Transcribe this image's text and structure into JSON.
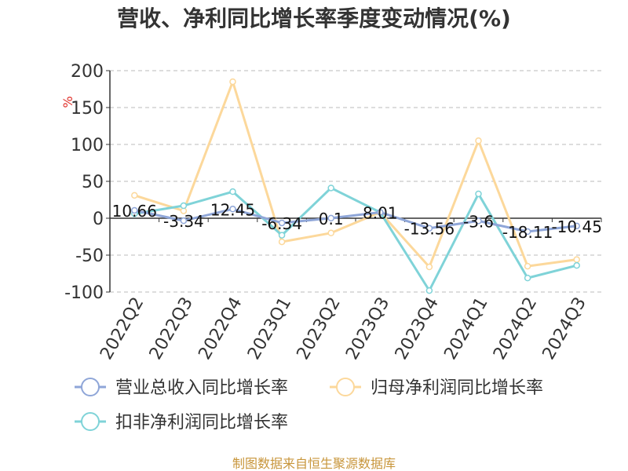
{
  "chart_data": {
    "type": "line",
    "title": "营收、净利同比增长率季度变动情况(%)",
    "ylabel": "%",
    "ylim": [
      -100,
      200
    ],
    "yticks": [
      -100,
      -50,
      0,
      50,
      100,
      150,
      200
    ],
    "grid": true,
    "legend_position": "bottom",
    "categories": [
      "2022Q2",
      "2022Q3",
      "2022Q4",
      "2023Q1",
      "2023Q2",
      "2023Q3",
      "2023Q4",
      "2024Q1",
      "2024Q2",
      "2024Q3"
    ],
    "series": [
      {
        "name": "营业总收入同比增长率",
        "color": "#8fa6d8",
        "values": [
          10.66,
          -3.34,
          12.45,
          -6.34,
          0.1,
          8.01,
          -13.56,
          -3.6,
          -18.11,
          -10.45
        ],
        "labels": [
          "10.66",
          "-3.34",
          "12.45",
          "-6.34",
          "0.1",
          "8.01",
          "-13.56",
          "-3.6",
          "-18.11",
          "-10.45"
        ]
      },
      {
        "name": "归母净利润同比增长率",
        "color": "#fcd89b",
        "values": [
          31,
          10,
          185,
          -32,
          -20,
          8,
          -66,
          105,
          -65,
          -56
        ]
      },
      {
        "name": "扣非净利润同比增长率",
        "color": "#7fd3d8",
        "values": [
          6,
          17,
          36,
          -23,
          41,
          8,
          -98,
          33,
          -81,
          -64
        ]
      }
    ],
    "source": "制图数据来自恒生聚源数据库"
  }
}
